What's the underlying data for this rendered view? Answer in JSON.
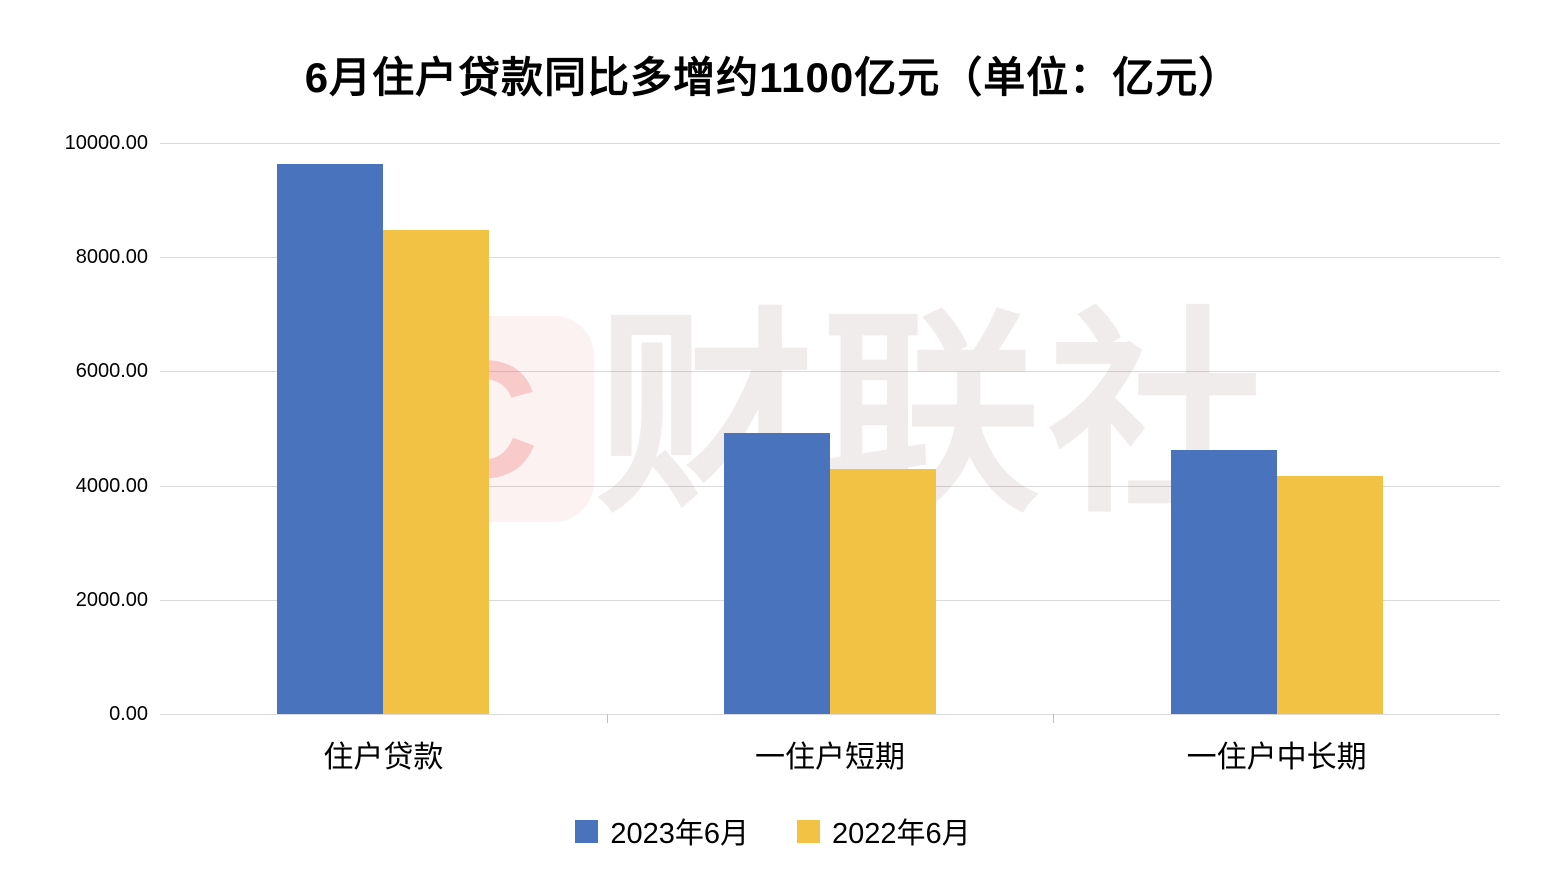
{
  "title": "6月住户贷款同比多增约1100亿元（单位：亿元）",
  "watermark": {
    "badge_letter": "C",
    "text": "财联社"
  },
  "chart_data": {
    "type": "bar",
    "title": "6月住户贷款同比多增约1100亿元（单位：亿元）",
    "categories": [
      "住户贷款",
      "一住户短期",
      "一住户中长期"
    ],
    "series": [
      {
        "name": "2023年6月",
        "color": "#4A73BE",
        "values": [
          9639,
          4914,
          4630
        ]
      },
      {
        "name": "2022年6月",
        "color": "#F2C244",
        "values": [
          8482,
          4282,
          4167
        ]
      }
    ],
    "xlabel": "",
    "ylabel": "",
    "ylim": [
      0,
      10000
    ],
    "ytick_step": 2000,
    "ytick_labels": [
      "0.00",
      "2000.00",
      "4000.00",
      "6000.00",
      "8000.00",
      "10000.00"
    ],
    "grid": true,
    "legend_position": "bottom"
  }
}
